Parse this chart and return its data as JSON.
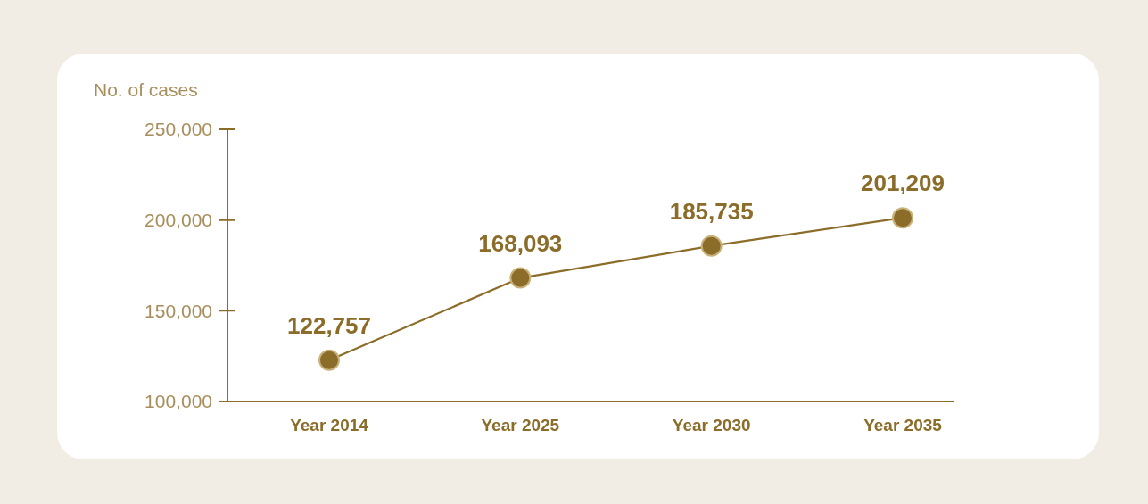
{
  "chart_data": {
    "type": "line",
    "ylabel": "No. of cases",
    "categories": [
      "Year 2014",
      "Year 2025",
      "Year 2030",
      "Year 2035"
    ],
    "series": [
      {
        "color": "#8b6c28",
        "values": [
          122757,
          168093,
          185735,
          201209
        ],
        "value_labels": [
          "122,757",
          "168,093",
          "185,735",
          "201,209"
        ]
      }
    ],
    "ylim": [
      100000,
      250000
    ],
    "yticks": [
      {
        "value": 100000,
        "label": "100,000"
      },
      {
        "value": 150000,
        "label": "150,000"
      },
      {
        "value": 200000,
        "label": "200,000"
      },
      {
        "value": 250000,
        "label": "250,000"
      }
    ],
    "marker": "circle",
    "line_style": "solid",
    "grid": false
  }
}
